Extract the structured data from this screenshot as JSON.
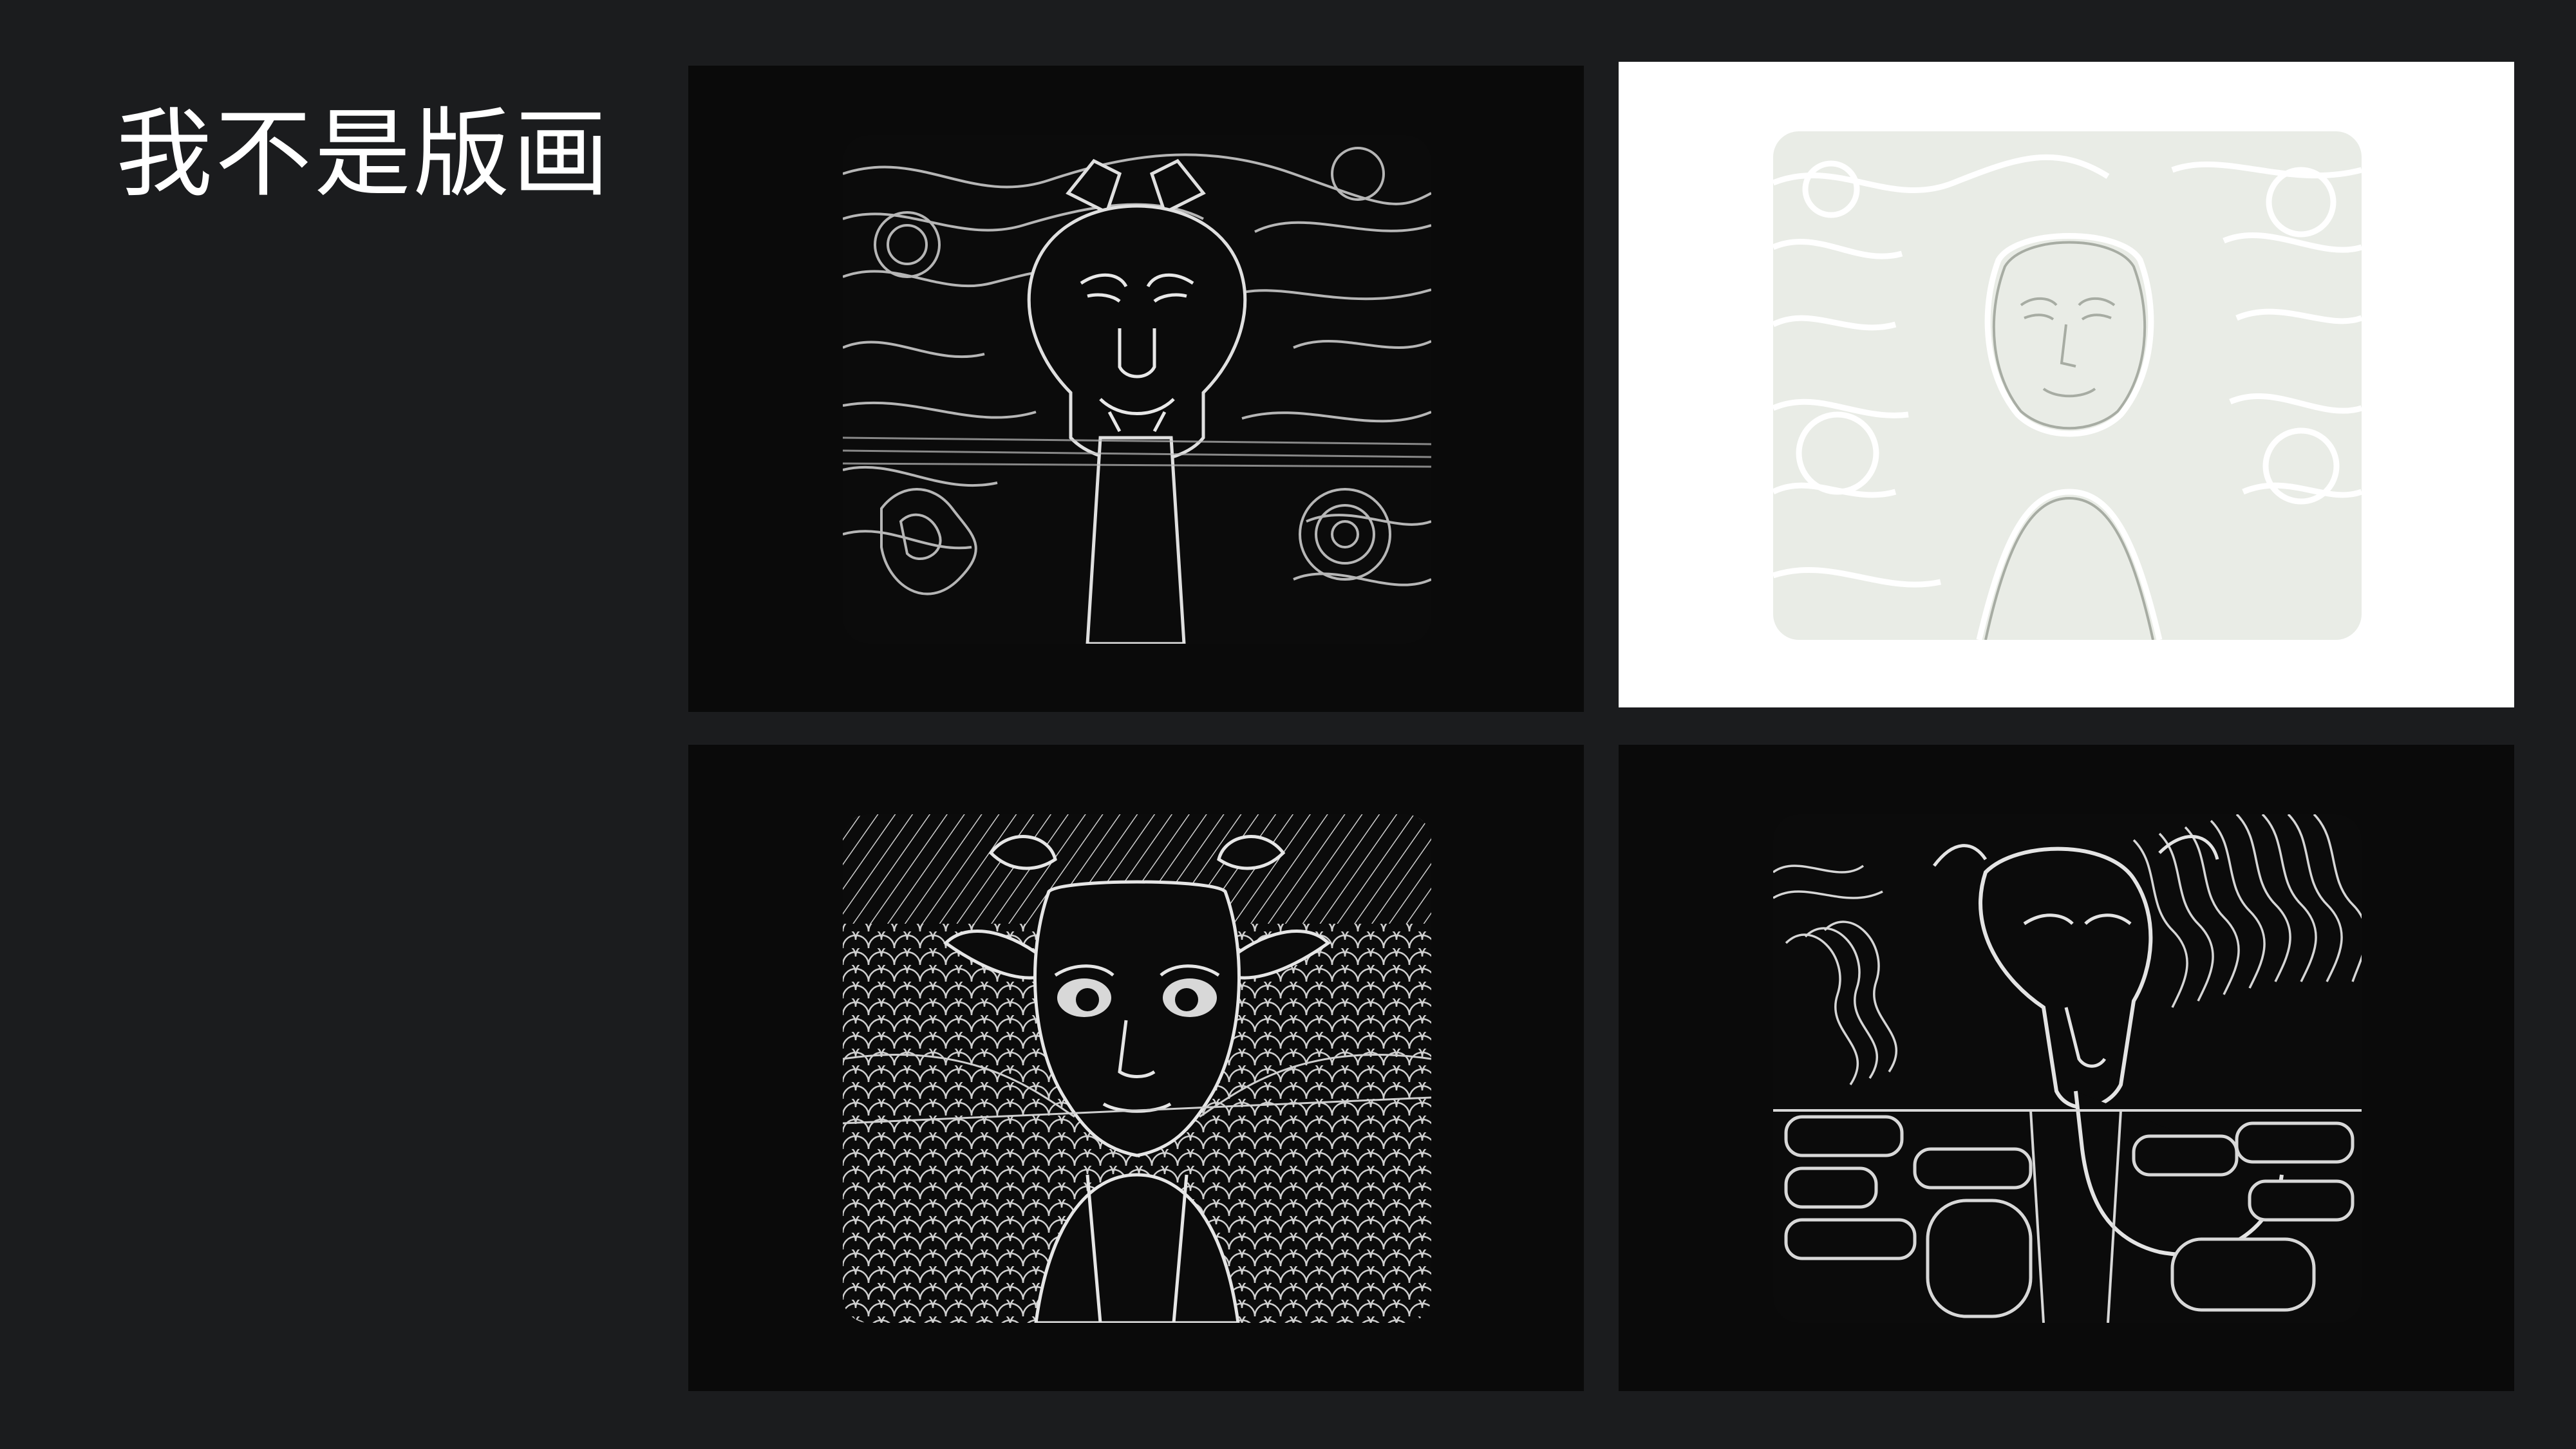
{
  "slide": {
    "title": "我不是版画"
  },
  "artworks": [
    {
      "icon": "horned-mask-artwork",
      "panel_color": "#0a0a0a",
      "art_color": "#0b0b0b"
    },
    {
      "icon": "face-outline-artwork",
      "panel_color": "#ffffff",
      "art_color": "#e9ece6"
    },
    {
      "icon": "goat-portrait-artwork",
      "panel_color": "#0a0a0a",
      "art_color": "#0b0b0b"
    },
    {
      "icon": "dragon-serpent-artwork",
      "panel_color": "#0a0a0a",
      "art_color": "#0b0b0b"
    }
  ],
  "colors": {
    "background": "#1b1c1e",
    "title_text": "#ffffff",
    "line_art": "#d8d8d8"
  }
}
